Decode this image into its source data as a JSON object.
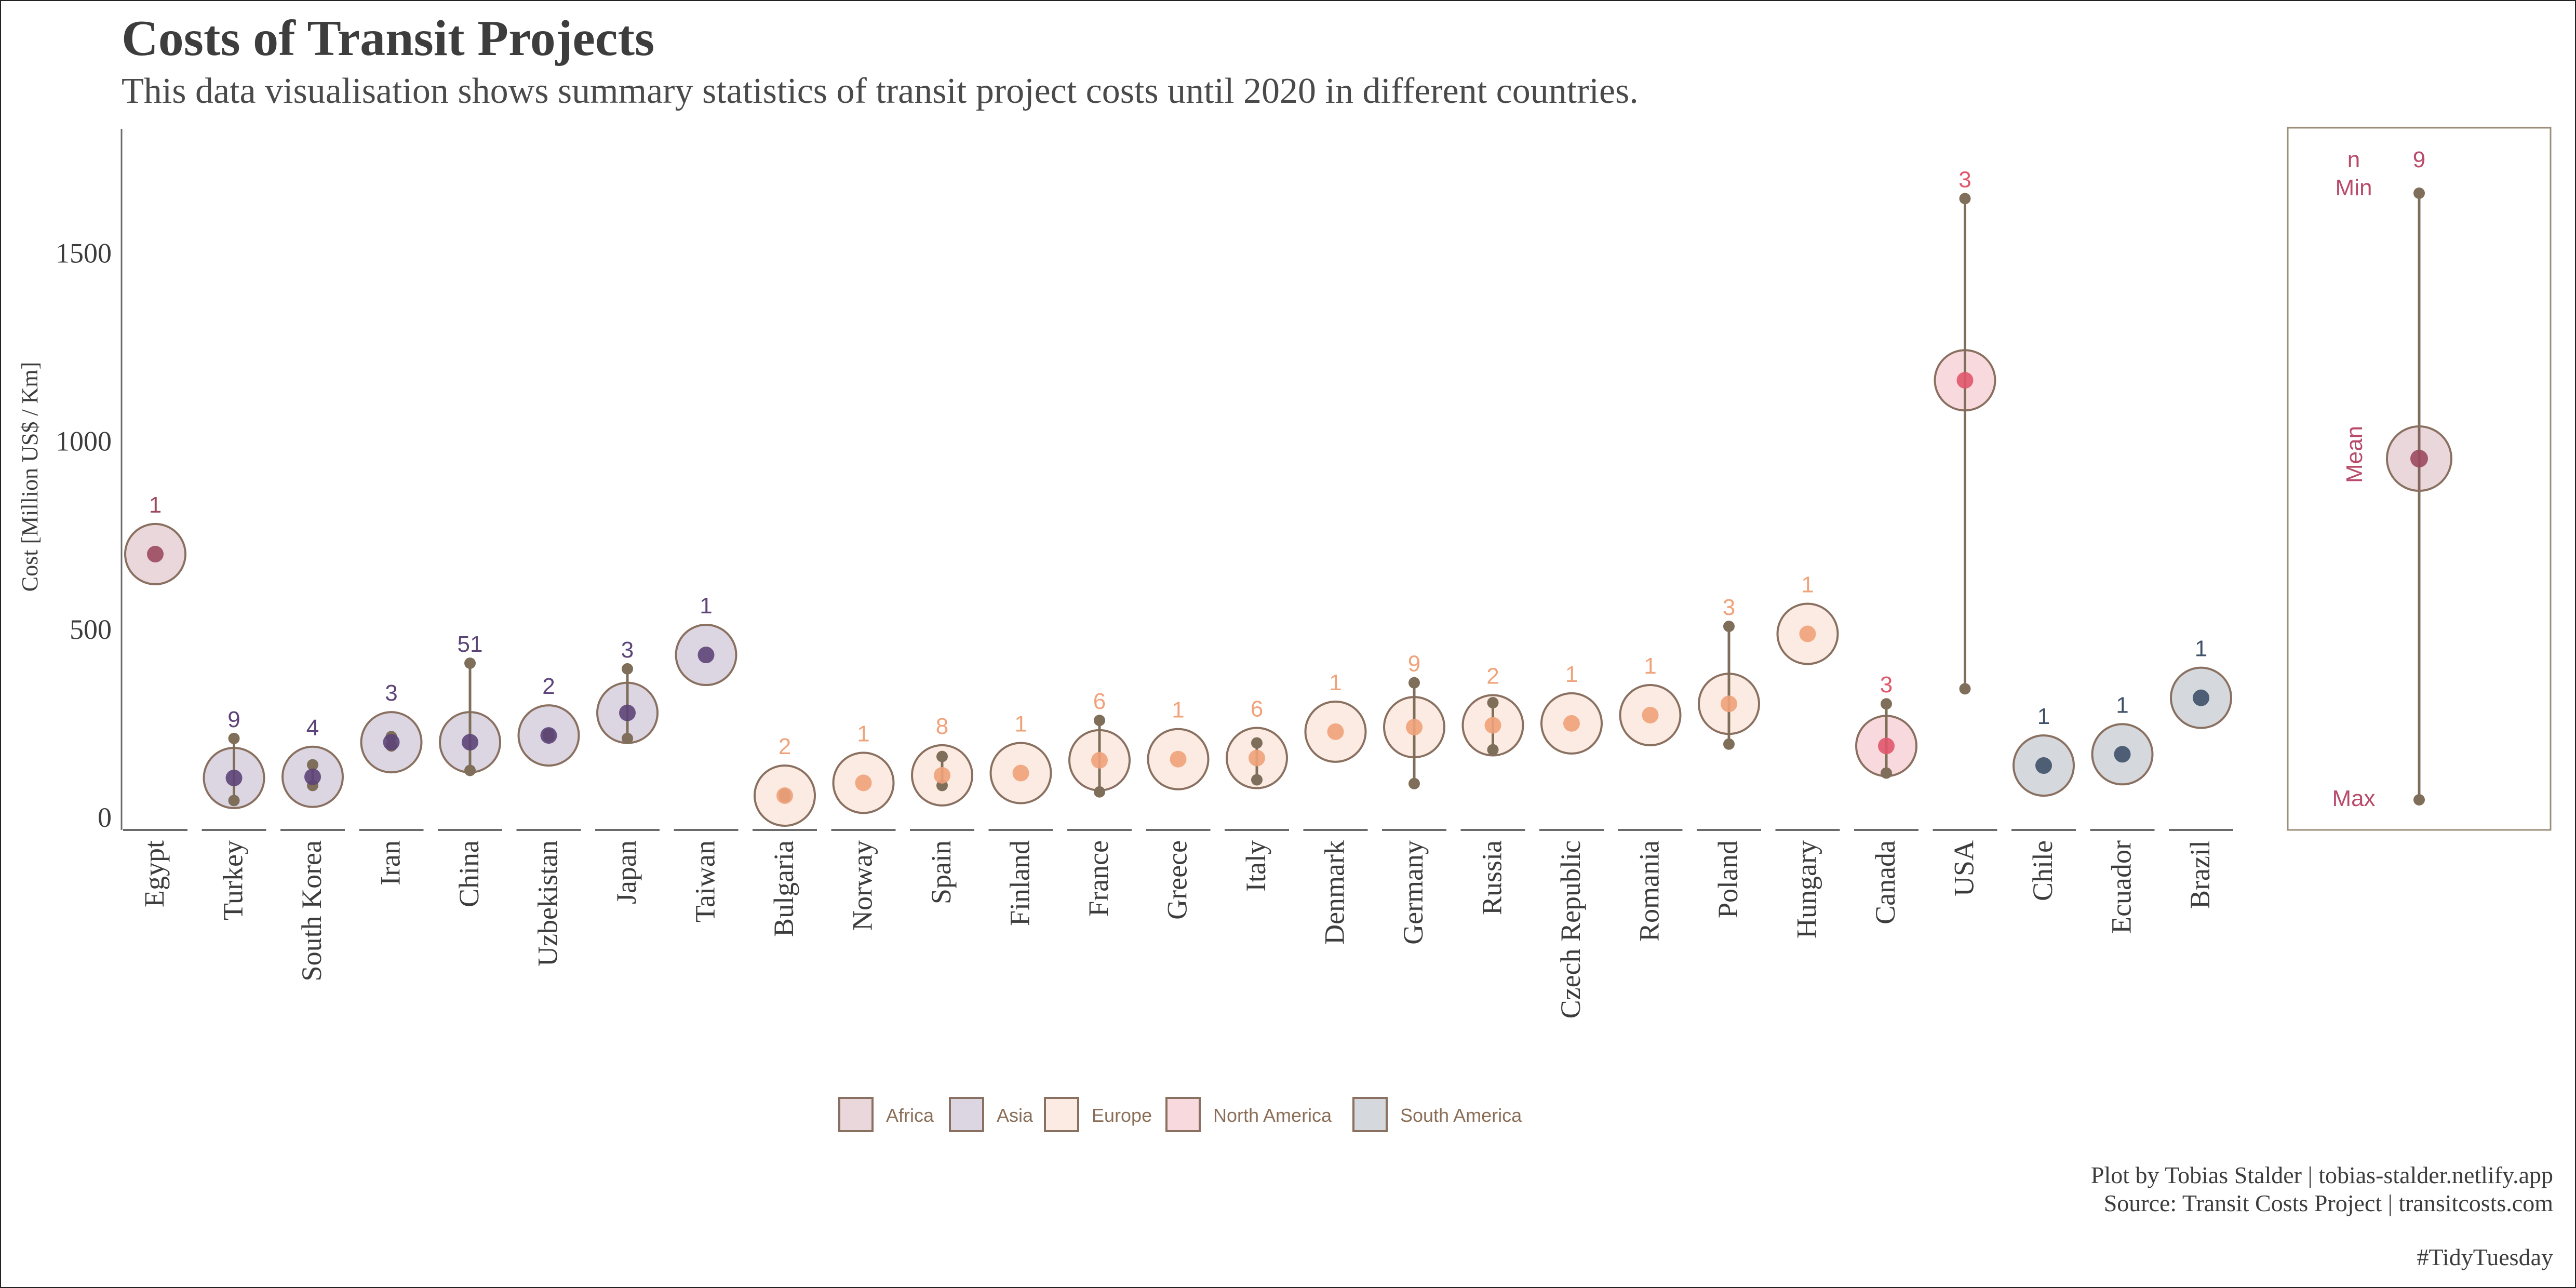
{
  "title": "Costs of Transit Projects",
  "subtitle": "This data visualisation shows summary statistics of transit project costs until 2020 in different countries.",
  "caption_line1": "Plot by Tobias Stalder | tobias-stalder.netlify.app",
  "caption_line2": "Source: Transit Costs Project | transitcosts.com",
  "tag": "#TidyTuesday",
  "colors": {
    "Africa": "#9b4a5e",
    "Asia": "#5d4478",
    "Europe": "#f0a27a",
    "North America": "#e0566a",
    "South America": "#3f5068",
    "stroke": "#8a7060",
    "range": "#7f6f5a"
  },
  "chart_data": {
    "type": "scatter",
    "ylabel": "Cost [Million US$ / Km]",
    "ylim": [
      -30,
      1840
    ],
    "yticks": [
      0,
      500,
      1000,
      1500
    ],
    "legend_position": "bottom",
    "legend": [
      "Africa",
      "Asia",
      "Europe",
      "North America",
      "South America"
    ],
    "series": [
      {
        "country": "Egypt",
        "region": "Africa",
        "n": 1,
        "mean": 700,
        "min": 700,
        "max": 700
      },
      {
        "country": "Turkey",
        "region": "Asia",
        "n": 9,
        "mean": 105,
        "min": 45,
        "max": 210
      },
      {
        "country": "South Korea",
        "region": "Asia",
        "n": 4,
        "mean": 108,
        "min": 85,
        "max": 140
      },
      {
        "country": "Iran",
        "region": "Asia",
        "n": 3,
        "mean": 200,
        "min": 190,
        "max": 215
      },
      {
        "country": "China",
        "region": "Asia",
        "n": 51,
        "mean": 200,
        "min": 125,
        "max": 410
      },
      {
        "country": "Uzbekistan",
        "region": "Asia",
        "n": 2,
        "mean": 218,
        "min": 215,
        "max": 222
      },
      {
        "country": "Japan",
        "region": "Asia",
        "n": 3,
        "mean": 278,
        "min": 210,
        "max": 395
      },
      {
        "country": "Taiwan",
        "region": "Asia",
        "n": 1,
        "mean": 432,
        "min": 432,
        "max": 432
      },
      {
        "country": "Bulgaria",
        "region": "Europe",
        "n": 2,
        "mean": 58,
        "min": 55,
        "max": 62
      },
      {
        "country": "Norway",
        "region": "Europe",
        "n": 1,
        "mean": 92,
        "min": 92,
        "max": 92
      },
      {
        "country": "Spain",
        "region": "Europe",
        "n": 8,
        "mean": 112,
        "min": 85,
        "max": 162
      },
      {
        "country": "Finland",
        "region": "Europe",
        "n": 1,
        "mean": 118,
        "min": 118,
        "max": 118
      },
      {
        "country": "France",
        "region": "Europe",
        "n": 6,
        "mean": 152,
        "min": 68,
        "max": 258
      },
      {
        "country": "Greece",
        "region": "Europe",
        "n": 1,
        "mean": 155,
        "min": 155,
        "max": 155
      },
      {
        "country": "Italy",
        "region": "Europe",
        "n": 6,
        "mean": 158,
        "min": 100,
        "max": 198
      },
      {
        "country": "Denmark",
        "region": "Europe",
        "n": 1,
        "mean": 228,
        "min": 228,
        "max": 228
      },
      {
        "country": "Germany",
        "region": "Europe",
        "n": 9,
        "mean": 240,
        "min": 90,
        "max": 358
      },
      {
        "country": "Russia",
        "region": "Europe",
        "n": 2,
        "mean": 245,
        "min": 180,
        "max": 305
      },
      {
        "country": "Czech Republic",
        "region": "Europe",
        "n": 1,
        "mean": 250,
        "min": 250,
        "max": 250
      },
      {
        "country": "Romania",
        "region": "Europe",
        "n": 1,
        "mean": 272,
        "min": 272,
        "max": 272
      },
      {
        "country": "Poland",
        "region": "Europe",
        "n": 3,
        "mean": 302,
        "min": 195,
        "max": 508
      },
      {
        "country": "Hungary",
        "region": "Europe",
        "n": 1,
        "mean": 488,
        "min": 488,
        "max": 488
      },
      {
        "country": "Canada",
        "region": "North America",
        "n": 3,
        "mean": 190,
        "min": 118,
        "max": 302
      },
      {
        "country": "USA",
        "region": "North America",
        "n": 3,
        "mean": 1162,
        "min": 342,
        "max": 1645
      },
      {
        "country": "Chile",
        "region": "South America",
        "n": 1,
        "mean": 138,
        "min": 138,
        "max": 138
      },
      {
        "country": "Ecuador",
        "region": "South America",
        "n": 1,
        "mean": 168,
        "min": 168,
        "max": 168
      },
      {
        "country": "Brazil",
        "region": "South America",
        "n": 1,
        "mean": 318,
        "min": 318,
        "max": 318
      }
    ],
    "key_panel": {
      "n_label": "n",
      "n_value": "9",
      "min_label": "Min",
      "mean_label": "Mean",
      "max_label": "Max"
    }
  }
}
